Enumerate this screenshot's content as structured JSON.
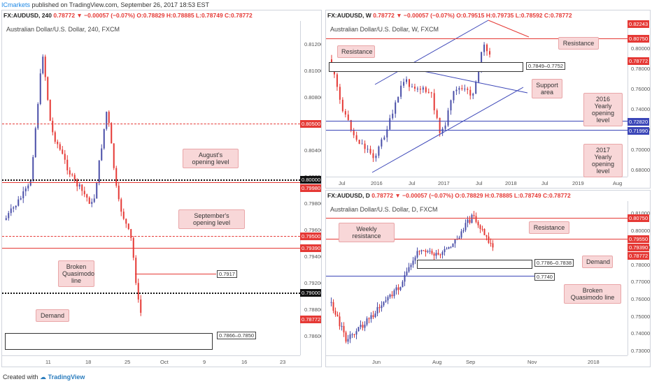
{
  "top_bar": {
    "brand": "ICmarkets",
    "text": " published on TradingView.com, September 26, 2017 18:53 EST"
  },
  "panels": {
    "left": {
      "header_symbol": "FX:AUDUSD, 240",
      "header_rest": "0.78772 ▼ −0.00057 (−0.07%) O:0.78829 H:0.78885 L:0.78749 C:0.78772",
      "subtitle": "Australian Dollar/U.S. Dollar, 240, FXCM",
      "price_ticks": [
        "0.81200",
        "0.81000",
        "0.80800",
        "0.80600",
        "0.80400",
        "0.80200",
        "0.79800",
        "0.79600",
        "0.79400",
        "0.79200",
        "0.78800",
        "0.78600"
      ],
      "tags": {
        "a": "0.80500",
        "b": "0.80000",
        "c": "0.79980",
        "d": "0.79500",
        "e": "0.79390",
        "f": "0.79000",
        "g": "0.78772"
      },
      "x_ticks": [
        "11",
        "18",
        "25",
        "Oct",
        "9",
        "16",
        "23"
      ],
      "notes": {
        "aug": "August's opening level",
        "sep": "September's opening level",
        "bq": "Broken Quasimodo line",
        "demand": "Demand"
      },
      "labels": {
        "q": "0.7917",
        "zone": "0.7866–0.7850"
      }
    },
    "weekly": {
      "header_symbol": "FX:AUDUSD, W",
      "header_rest": "0.78772 ▼ −0.00057 (−0.07%) O:0.79515 H:0.79735 L:0.78592 C:0.78772",
      "subtitle": "Australian Dollar/U.S. Dollar, W, FXCM",
      "price_ticks": [
        "0.80000",
        "0.78000",
        "0.76000",
        "0.74000",
        "0.72000",
        "0.70000",
        "0.68000"
      ],
      "tags": {
        "a": "0.82243",
        "b": "0.80750",
        "c": "0.78772",
        "d": "0.72820",
        "e": "0.71990"
      },
      "x_ticks": [
        "Jul",
        "2016",
        "Jul",
        "2017",
        "Jul",
        "2018",
        "Jul",
        "2019",
        "Aug"
      ],
      "notes": {
        "res1": "Resistance",
        "res2": "Resistance",
        "support": "Support area",
        "y2016": "2016 Yearly opening level",
        "y2017": "2017 Yearly opening level"
      },
      "labels": {
        "zone": "0.7849–0.7752"
      }
    },
    "daily": {
      "header_symbol": "FX:AUDUSD, D",
      "header_rest": "0.78772 ▼ −0.00057 (−0.07%) O:0.78829 H:0.78885 L:0.78749 C:0.78772",
      "subtitle": "Australian Dollar/U.S. Dollar, D, FXCM",
      "price_ticks": [
        "0.81000",
        "0.80000",
        "0.79000",
        "0.78000",
        "0.77000",
        "0.76000",
        "0.75000",
        "0.74000",
        "0.73000"
      ],
      "tags": {
        "a": "0.80750",
        "b": "0.79550",
        "c": "0.79390",
        "d": "0.78772"
      },
      "x_ticks": [
        "Jun",
        "Aug",
        "Sep",
        "Nov",
        "2018"
      ],
      "notes": {
        "wres": "Weekly resistance",
        "res": "Resistance",
        "demand": "Demand",
        "bq": "Broken Quasimodo line"
      },
      "labels": {
        "zone": "0.7786–0.7838",
        "bq": "0.7740"
      }
    }
  },
  "footer": {
    "created": "Created with",
    "brand": "TradingView"
  },
  "colors": {
    "up": "#4a4fa8",
    "down": "#e53935",
    "res": "#e53935",
    "sup": "#3b46b8"
  }
}
